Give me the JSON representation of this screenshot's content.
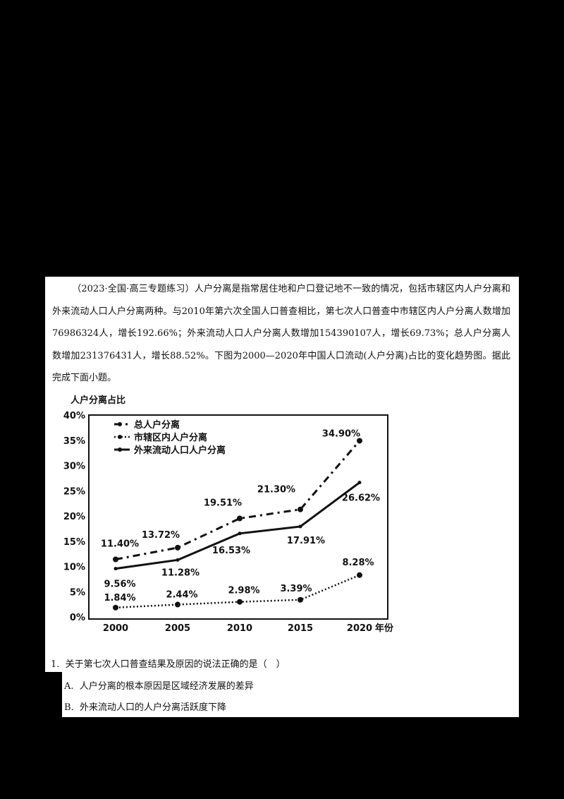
{
  "intro": {
    "source": "（2023·全国·高三专题练习）",
    "text": "人户分离是指常居住地和户口登记地不一致的情况，包括市辖区内人户分离和外来流动人口人户分离两种。与2010年第六次全国人口普查相比，第七次人口普查中市辖区内人户分离人数增加76986324人，增长192.66%；外来流动人口人户分离人数增加154390107人，增长69.73%；总人户分离人数增加231376431人，增长88.52%。下图为2000—2020年中国人口流动(人户分离)占比的变化趋势图。据此完成下面小题。"
  },
  "chart_data": {
    "type": "line",
    "title": "人户分离占比",
    "xlabel": "年份",
    "ylabel": "人户分离占比",
    "x": [
      2000,
      2005,
      2010,
      2015,
      2020
    ],
    "categories": [
      "2000",
      "2005",
      "2010",
      "2015",
      "2020"
    ],
    "yticks": [
      "0%",
      "5%",
      "10%",
      "15%",
      "20%",
      "25%",
      "30%",
      "35%",
      "40%"
    ],
    "ylim": [
      0,
      40
    ],
    "grid": false,
    "legend_position": "top-left inside",
    "series": [
      {
        "name": "总人户分离",
        "style": "dash-dot",
        "values": [
          11.4,
          13.72,
          19.51,
          21.3,
          34.9
        ],
        "labels": [
          "11.40%",
          "13.72%",
          "19.51%",
          "21.30%",
          "34.90%"
        ]
      },
      {
        "name": "市辖区内人户分离",
        "style": "dotted",
        "values": [
          1.84,
          2.44,
          2.98,
          3.39,
          8.28
        ],
        "labels": [
          "1.84%",
          "2.44%",
          "2.98%",
          "3.39%",
          "8.28%"
        ]
      },
      {
        "name": "外来流动人口人户分离",
        "style": "solid",
        "values": [
          9.56,
          11.28,
          16.53,
          17.91,
          26.62
        ],
        "labels": [
          "9.56%",
          "11.28%",
          "16.53%",
          "17.91%",
          "26.62%"
        ]
      }
    ]
  },
  "question": {
    "number": "1.",
    "stem": "关于第七次人口普查结果及原因的说法正确的是（　）",
    "options": [
      {
        "key": "A.",
        "text": "人户分离的根本原因是区域经济发展的差异"
      },
      {
        "key": "B.",
        "text": "外来流动人口的人户分离活跃度下降"
      }
    ]
  }
}
